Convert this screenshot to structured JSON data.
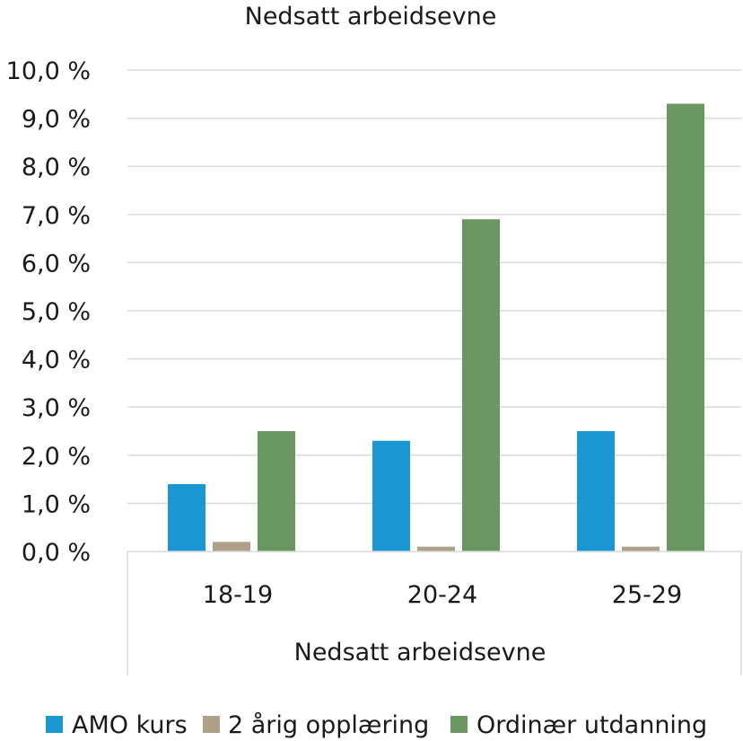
{
  "chart_data": {
    "type": "bar",
    "title": "Nedsatt arbeidsevne",
    "xlabel": "Nedsatt arbeidsevne",
    "ylabel": "",
    "categories": [
      "18-19",
      "20-24",
      "25-29"
    ],
    "series": [
      {
        "name": "AMO kurs",
        "color": "#1b97d4",
        "values": [
          1.4,
          2.3,
          2.5
        ]
      },
      {
        "name": "2 årig opplæring",
        "color": "#ada18a",
        "values": [
          0.2,
          0.1,
          0.1
        ]
      },
      {
        "name": "Ordinær utdanning",
        "color": "#6a9661",
        "values": [
          2.5,
          6.9,
          9.3
        ]
      }
    ],
    "ylim": [
      0,
      10
    ],
    "yticks": [
      "0,0 %",
      "1,0 %",
      "2,0 %",
      "3,0 %",
      "4,0 %",
      "5,0 %",
      "6,0 %",
      "7,0 %",
      "8,0 %",
      "9,0 %",
      "10,0 %"
    ],
    "ytick_values": [
      0,
      1,
      2,
      3,
      4,
      5,
      6,
      7,
      8,
      9,
      10
    ],
    "grid": true,
    "legend": "bottom"
  }
}
